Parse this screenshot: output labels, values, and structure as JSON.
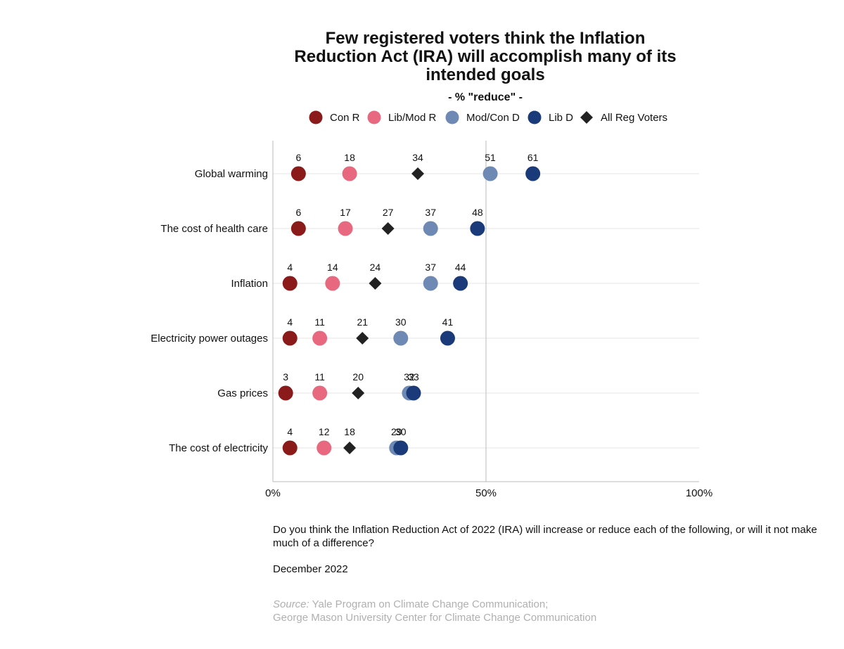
{
  "chart_data": {
    "type": "scatter",
    "title_lines": [
      "Few registered voters think the Inflation",
      "Reduction Act (IRA) will accomplish many of its",
      "intended goals"
    ],
    "subtitle": "- % \"reduce\" -",
    "categories": [
      "Global warming",
      "The cost of health care",
      "Inflation",
      "Electricity power outages",
      "Gas prices",
      "The cost of electricity"
    ],
    "x_ticks": [
      "0%",
      "50%",
      "100%"
    ],
    "xlim": [
      0,
      100
    ],
    "grid": true,
    "legend_position": "top",
    "series": [
      {
        "name": "Con R",
        "marker": "circle",
        "color": "#8B1A1A",
        "values": [
          6,
          6,
          4,
          4,
          3,
          4
        ]
      },
      {
        "name": "Lib/Mod R",
        "marker": "circle",
        "color": "#E8697F",
        "values": [
          18,
          17,
          14,
          11,
          11,
          12
        ]
      },
      {
        "name": "Mod/Con D",
        "marker": "circle",
        "color": "#6E89B3",
        "values": [
          51,
          37,
          37,
          30,
          32,
          29
        ]
      },
      {
        "name": "Lib D",
        "marker": "circle",
        "color": "#1A3A7A",
        "values": [
          61,
          48,
          44,
          41,
          33,
          30
        ]
      },
      {
        "name": "All Reg Voters",
        "marker": "diamond",
        "color": "#222222",
        "values": [
          34,
          27,
          24,
          21,
          20,
          18
        ]
      }
    ]
  },
  "notes": {
    "question": "Do you think the Inflation Reduction Act of 2022 (IRA) will increase or reduce each of the following, or will it not make much of a difference?",
    "date": "December 2022",
    "source_prefix": "Source:",
    "source_line1": "Yale Program on Climate Change Communication;",
    "source_line2": "George Mason University Center for Climate Change Communication"
  }
}
